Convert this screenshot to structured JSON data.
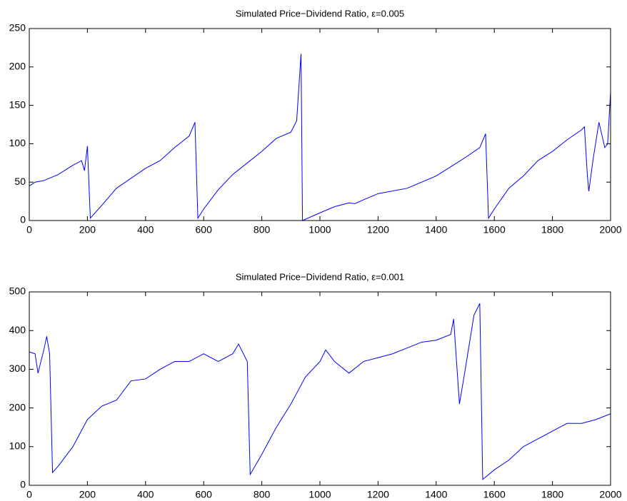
{
  "chart_data": [
    {
      "type": "line",
      "title": "Simulated Price−Dividend Ratio, ε=0.005",
      "x": [
        0,
        20,
        50,
        100,
        150,
        180,
        190,
        200,
        210,
        250,
        300,
        350,
        400,
        450,
        500,
        550,
        570,
        580,
        600,
        650,
        700,
        750,
        800,
        850,
        900,
        920,
        935,
        940,
        1000,
        1050,
        1100,
        1120,
        1150,
        1200,
        1300,
        1400,
        1450,
        1500,
        1550,
        1570,
        1580,
        1600,
        1650,
        1700,
        1750,
        1800,
        1850,
        1900,
        1910,
        1920,
        1925,
        1940,
        1960,
        1980,
        1990,
        2000
      ],
      "series": [
        {
          "name": "P/D",
          "color": "#0000ff",
          "values": [
            45,
            50,
            52,
            60,
            72,
            78,
            65,
            97,
            3,
            20,
            42,
            55,
            68,
            78,
            95,
            110,
            128,
            3,
            15,
            40,
            60,
            75,
            90,
            107,
            115,
            130,
            217,
            0,
            10,
            18,
            23,
            22,
            27,
            35,
            42,
            58,
            70,
            82,
            95,
            113,
            3,
            15,
            42,
            58,
            78,
            90,
            105,
            118,
            122,
            60,
            38,
            80,
            128,
            95,
            100,
            168
          ]
        }
      ],
      "xlim": [
        0,
        2000
      ],
      "xticks": [
        0,
        200,
        400,
        600,
        800,
        1000,
        1200,
        1400,
        1600,
        1800,
        2000
      ],
      "ylim": [
        0,
        250
      ],
      "yticks": [
        0,
        50,
        100,
        150,
        200,
        250
      ]
    },
    {
      "type": "line",
      "title": "Simulated Price−Dividend Ratio, ε=0.001",
      "x": [
        0,
        20,
        30,
        50,
        60,
        70,
        80,
        100,
        150,
        200,
        250,
        300,
        350,
        400,
        450,
        500,
        550,
        600,
        650,
        700,
        720,
        750,
        760,
        800,
        850,
        900,
        950,
        1000,
        1020,
        1050,
        1100,
        1150,
        1200,
        1250,
        1300,
        1350,
        1400,
        1450,
        1460,
        1480,
        1500,
        1530,
        1550,
        1560,
        1600,
        1650,
        1700,
        1750,
        1800,
        1850,
        1900,
        1950,
        2000
      ],
      "series": [
        {
          "name": "P/D",
          "color": "#0000ff",
          "values": [
            345,
            340,
            290,
            350,
            385,
            340,
            33,
            50,
            100,
            170,
            205,
            220,
            270,
            275,
            300,
            320,
            320,
            340,
            320,
            340,
            365,
            320,
            28,
            80,
            150,
            210,
            280,
            320,
            350,
            320,
            290,
            320,
            330,
            340,
            355,
            370,
            375,
            390,
            430,
            210,
            300,
            440,
            470,
            15,
            40,
            65,
            100,
            120,
            140,
            160,
            160,
            170,
            185
          ]
        }
      ],
      "xlim": [
        0,
        2000
      ],
      "xticks": [
        0,
        200,
        400,
        600,
        800,
        1000,
        1200,
        1400,
        1600,
        1800,
        2000
      ],
      "ylim": [
        0,
        500
      ],
      "yticks": [
        0,
        100,
        200,
        300,
        400,
        500
      ]
    }
  ]
}
